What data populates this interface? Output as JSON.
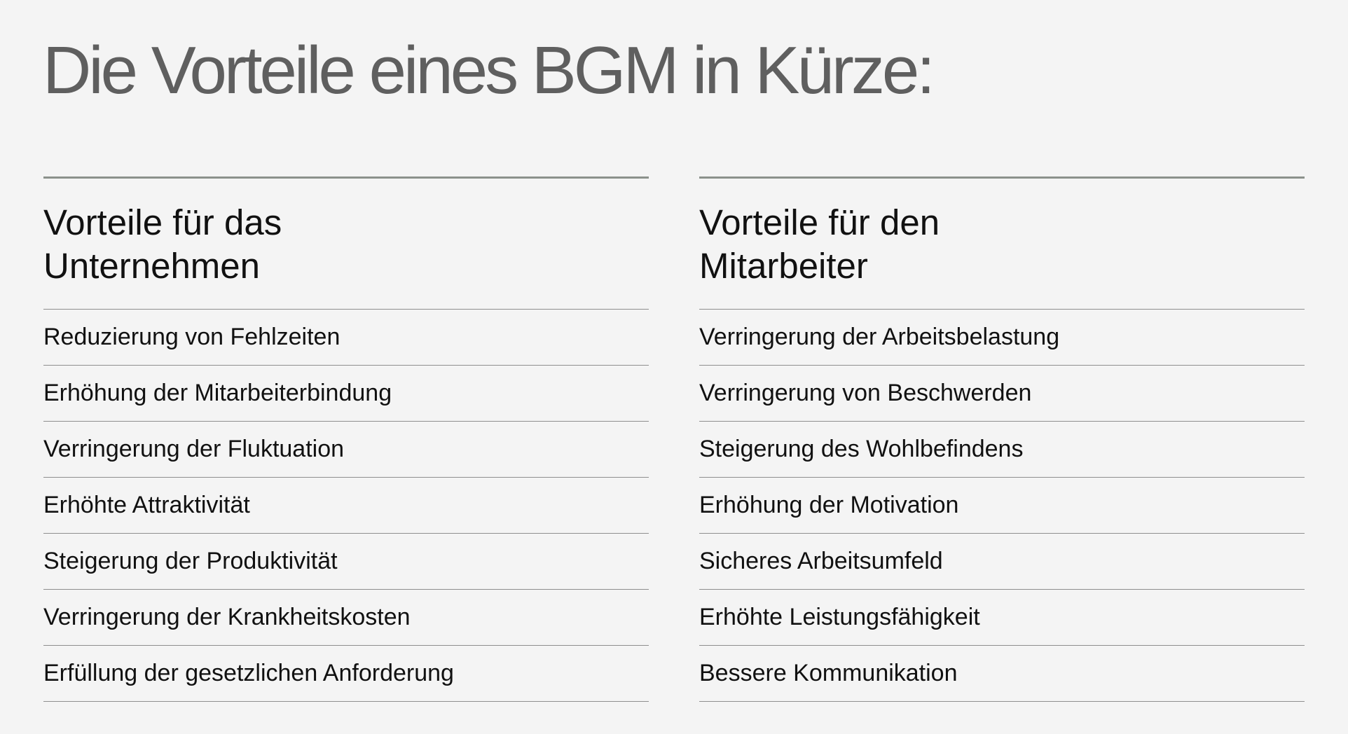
{
  "title": "Die Vorteile eines BGM in Kürze:",
  "columns": [
    {
      "heading_line1": "Vorteile für das",
      "heading_line2": "Unternehmen",
      "items": [
        "Reduzierung von Fehlzeiten",
        "Erhöhung der Mitarbeiterbindung",
        "Verringerung der Fluktuation",
        "Erhöhte Attraktivität",
        "Steigerung der Produktivität",
        "Verringerung der Krankheitskosten",
        "Erfüllung der gesetzlichen Anforderung"
      ]
    },
    {
      "heading_line1": "Vorteile für den",
      "heading_line2": "Mitarbeiter",
      "items": [
        "Verringerung der Arbeitsbelastung",
        "Verringerung von Beschwerden",
        "Steigerung des Wohlbefindens",
        "Erhöhung der Motivation",
        "Sicheres Arbeitsumfeld",
        "Erhöhte Leistungsfähigkeit",
        "Bessere Kommunikation"
      ]
    }
  ]
}
